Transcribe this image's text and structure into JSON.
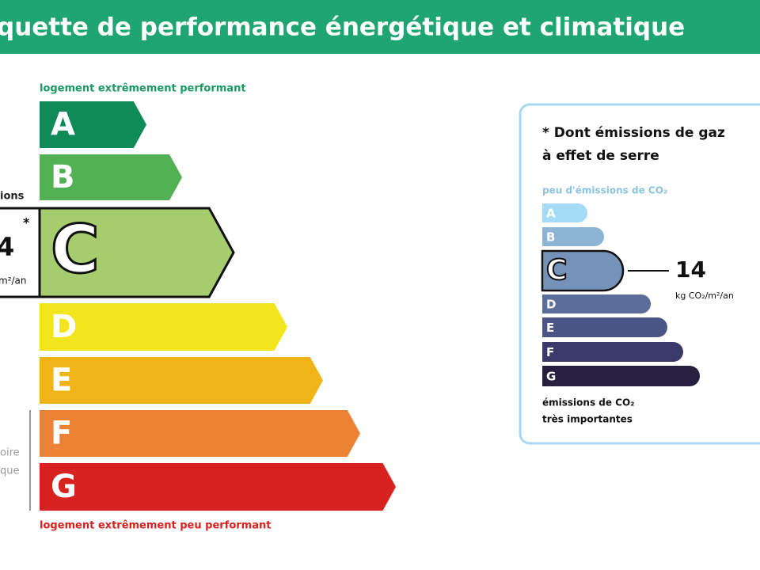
{
  "header": {
    "title": "quette de performance énergétique et climatique"
  },
  "energy": {
    "top_label": "logement extrêmement performant",
    "bottom_label": "logement extrêmement peu performant",
    "classes": [
      "A",
      "B",
      "C",
      "D",
      "E",
      "F",
      "G"
    ],
    "side_texts": {
      "emissions_cut": "ions",
      "value_cut": "4",
      "star": "*",
      "unit_cut": "m²/an",
      "line1_cut": "oire",
      "line2_cut": "que"
    }
  },
  "ges": {
    "title_line1": "* Dont émissions de gaz",
    "title_line2": "à effet de serre",
    "top_label": "peu d'émissions de CO₂",
    "classes": [
      "A",
      "B",
      "C",
      "D",
      "E",
      "F",
      "G"
    ],
    "value": 14,
    "unit": "kg CO₂/m²/an",
    "bottom_line1": "émissions de CO₂",
    "bottom_line2": "très importantes"
  }
}
